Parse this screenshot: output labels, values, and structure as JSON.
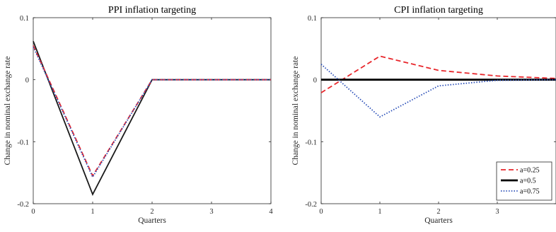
{
  "chart_data": [
    {
      "type": "line",
      "title": "PPI inflation targeting",
      "xlabel": "Quarters",
      "ylabel": "Change in nominal exchange rate",
      "xlim": [
        0,
        4
      ],
      "ylim": [
        -0.2,
        0.1
      ],
      "xticks": [
        "0",
        "1",
        "2",
        "3",
        "4"
      ],
      "yticks": [
        "-0.2",
        "-0.1",
        "0",
        "0.1"
      ],
      "grid": false,
      "series": [
        {
          "key": "s1",
          "color": "#1a1a1a",
          "dash": "solid",
          "x": [
            0,
            1,
            2,
            3,
            4
          ],
          "values": [
            0.062,
            -0.185,
            0.0,
            0.0,
            0.0
          ]
        },
        {
          "key": "s2",
          "color": "#e8262b",
          "dash": "dashed",
          "x": [
            0,
            1,
            2,
            3,
            4
          ],
          "values": [
            0.055,
            -0.155,
            0.0,
            0.0,
            0.0
          ]
        },
        {
          "key": "s3",
          "color": "#2b4fb8",
          "dash": "dotted",
          "x": [
            0,
            1,
            2,
            3,
            4
          ],
          "values": [
            0.053,
            -0.157,
            0.0,
            0.0,
            0.0
          ]
        }
      ]
    },
    {
      "type": "line",
      "title": "CPI inflation targeting",
      "xlabel": "Quarters",
      "ylabel": "Change in nominal exchange rate",
      "xlim": [
        0,
        4
      ],
      "ylim": [
        -0.2,
        0.1
      ],
      "xticks": [
        "0",
        "1",
        "2",
        "3"
      ],
      "yticks": [
        "-0.2",
        "-0.1",
        "0",
        "0.1"
      ],
      "grid": false,
      "legend": "bottom-right",
      "series": [
        {
          "name": "a=0.25",
          "color": "#e8262b",
          "dash": "dashed",
          "width": 1.8,
          "x": [
            0,
            1,
            2,
            3,
            4
          ],
          "values": [
            -0.021,
            0.038,
            0.015,
            0.006,
            0.002
          ]
        },
        {
          "name": "a=0.5",
          "color": "#000000",
          "dash": "solid",
          "width": 2.8,
          "x": [
            0,
            1,
            2,
            3,
            4
          ],
          "values": [
            0.0,
            0.0,
            0.0,
            0.0,
            0.0
          ]
        },
        {
          "name": "a=0.75",
          "color": "#2b4fb8",
          "dash": "dotted",
          "width": 1.8,
          "x": [
            0,
            1,
            2,
            3,
            4
          ],
          "values": [
            0.025,
            -0.06,
            -0.01,
            -0.001,
            0.0
          ]
        }
      ]
    }
  ]
}
